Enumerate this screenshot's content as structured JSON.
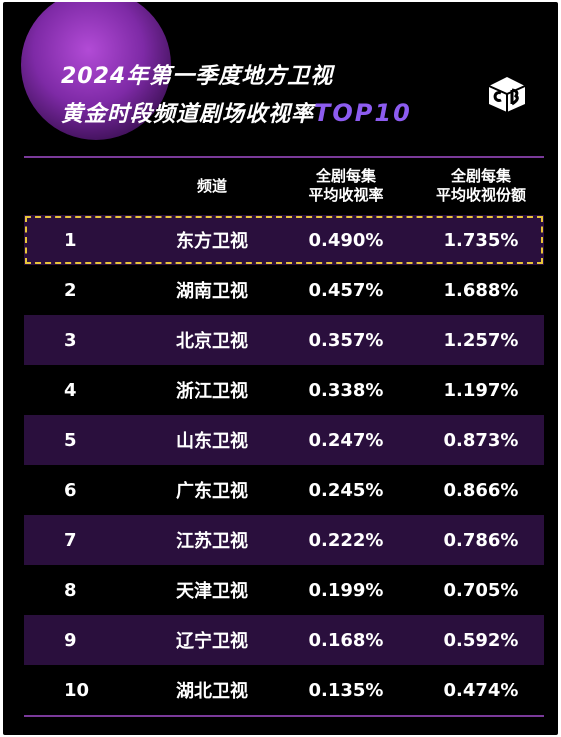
{
  "title": {
    "line1": "2024年第一季度地方卫视",
    "line2_main": "黄金时段频道剧场收视率",
    "line2_accent": "TOP10"
  },
  "table": {
    "headers": {
      "rank": "",
      "channel": "频道",
      "rating_line1": "全剧每集",
      "rating_line2": "平均收视率",
      "share_line1": "全剧每集",
      "share_line2": "平均收视份额"
    }
  },
  "colors": {
    "background": "#000000",
    "accent_purple": "#8d5cf0",
    "row_shade": "#2a0f3d",
    "highlight_border": "#e8c53a",
    "rule": "#7a3a9a"
  },
  "logo": {
    "icon": "cb-logo-icon"
  },
  "chart_data": {
    "type": "table",
    "title": "2024年第一季度地方卫视黄金时段频道剧场收视率TOP10",
    "columns": [
      "",
      "频道",
      "全剧每集平均收视率",
      "全剧每集平均收视份额"
    ],
    "rows": [
      {
        "rank": "1",
        "channel": "东方卫视",
        "rating": "0.490%",
        "share": "1.735%"
      },
      {
        "rank": "2",
        "channel": "湖南卫视",
        "rating": "0.457%",
        "share": "1.688%"
      },
      {
        "rank": "3",
        "channel": "北京卫视",
        "rating": "0.357%",
        "share": "1.257%"
      },
      {
        "rank": "4",
        "channel": "浙江卫视",
        "rating": "0.338%",
        "share": "1.197%"
      },
      {
        "rank": "5",
        "channel": "山东卫视",
        "rating": "0.247%",
        "share": "0.873%"
      },
      {
        "rank": "6",
        "channel": "广东卫视",
        "rating": "0.245%",
        "share": "0.866%"
      },
      {
        "rank": "7",
        "channel": "江苏卫视",
        "rating": "0.222%",
        "share": "0.786%"
      },
      {
        "rank": "8",
        "channel": "天津卫视",
        "rating": "0.199%",
        "share": "0.705%"
      },
      {
        "rank": "9",
        "channel": "辽宁卫视",
        "rating": "0.168%",
        "share": "0.592%"
      },
      {
        "rank": "10",
        "channel": "湖北卫视",
        "rating": "0.135%",
        "share": "0.474%"
      }
    ]
  }
}
